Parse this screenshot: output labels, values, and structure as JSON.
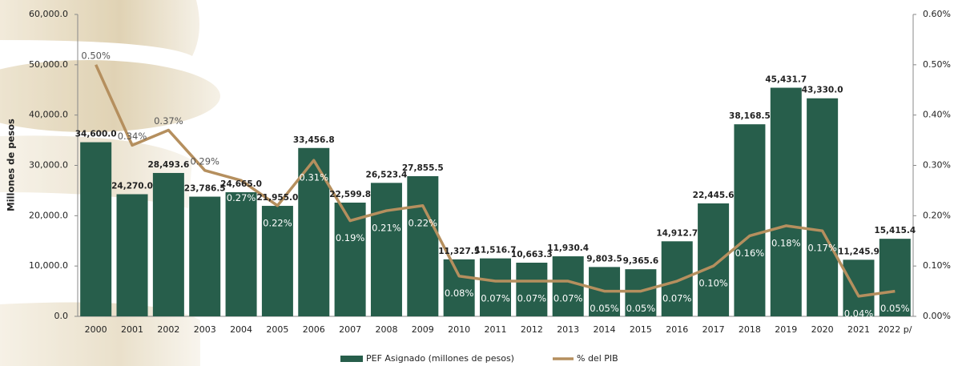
{
  "chart_data": {
    "type": "bar-line",
    "y_label": "Millones de pesos",
    "categories": [
      "2000",
      "2001",
      "2002",
      "2003",
      "2004",
      "2005",
      "2006",
      "2007",
      "2008",
      "2009",
      "2010",
      "2011",
      "2012",
      "2013",
      "2014",
      "2015",
      "2016",
      "2017",
      "2018",
      "2019",
      "2020",
      "2021",
      "2022 p/"
    ],
    "series": [
      {
        "name": "PEF Asignado (millones de pesos)",
        "color": "#275e4b",
        "values": [
          34600.0,
          24270.0,
          28493.6,
          23786.5,
          24665.0,
          21955.0,
          33456.8,
          22599.8,
          26523.4,
          27855.5,
          11327.5,
          11516.7,
          10663.3,
          11930.4,
          9803.5,
          9365.6,
          14912.7,
          22445.6,
          38168.5,
          45431.7,
          43330.0,
          11245.9,
          15415.4
        ],
        "value_labels": [
          "34,600.0",
          "24,270.0",
          "28,493.6",
          "23,786.5",
          "24,665.0",
          "21,955.0",
          "33,456.8",
          "22,599.8",
          "26,523.4",
          "27,855.5",
          "11,327.5",
          "11,516.7",
          "10,663.3",
          "11,930.4",
          "9,803.5",
          "9,365.6",
          "14,912.7",
          "22,445.6",
          "38,168.5",
          "45,431.7",
          "43,330.0",
          "11,245.9",
          "15,415.4"
        ]
      },
      {
        "name": "% del PIB",
        "color": "#b58f5e",
        "axis": "y2",
        "values": [
          0.5,
          0.34,
          0.37,
          0.29,
          0.27,
          0.22,
          0.31,
          0.19,
          0.21,
          0.22,
          0.08,
          0.07,
          0.07,
          0.07,
          0.05,
          0.05,
          0.07,
          0.1,
          0.16,
          0.18,
          0.17,
          0.04,
          0.05
        ],
        "value_labels": [
          "0.50%",
          "0.34%",
          "0.37%",
          "0.29%",
          "0.27%",
          "0.22%",
          "0.31%",
          "0.19%",
          "0.21%",
          "0.22%",
          "0.08%",
          "0.07%",
          "0.07%",
          "0.07%",
          "0.05%",
          "0.05%",
          "0.07%",
          "0.10%",
          "0.16%",
          "0.18%",
          "0.17%",
          "0.04%",
          "0.05%"
        ]
      }
    ],
    "ylim": [
      0,
      60000
    ],
    "yticks": [
      {
        "value": 0,
        "label": "0.0"
      },
      {
        "value": 10000,
        "label": "10,000.0"
      },
      {
        "value": 20000,
        "label": "20,000.0"
      },
      {
        "value": 30000,
        "label": "30,000.0"
      },
      {
        "value": 40000,
        "label": "40,000.0"
      },
      {
        "value": 50000,
        "label": "50,000.0"
      },
      {
        "value": 60000,
        "label": "60,000.0"
      }
    ],
    "y2lim": [
      0,
      0.6
    ],
    "y2ticks": [
      {
        "value": 0,
        "label": "0.00%"
      },
      {
        "value": 0.1,
        "label": "0.10%"
      },
      {
        "value": 0.2,
        "label": "0.20%"
      },
      {
        "value": 0.3,
        "label": "0.30%"
      },
      {
        "value": 0.4,
        "label": "0.40%"
      },
      {
        "value": 0.5,
        "label": "0.50%"
      },
      {
        "value": 0.6,
        "label": "0.60%"
      }
    ],
    "legend": "bottom"
  }
}
